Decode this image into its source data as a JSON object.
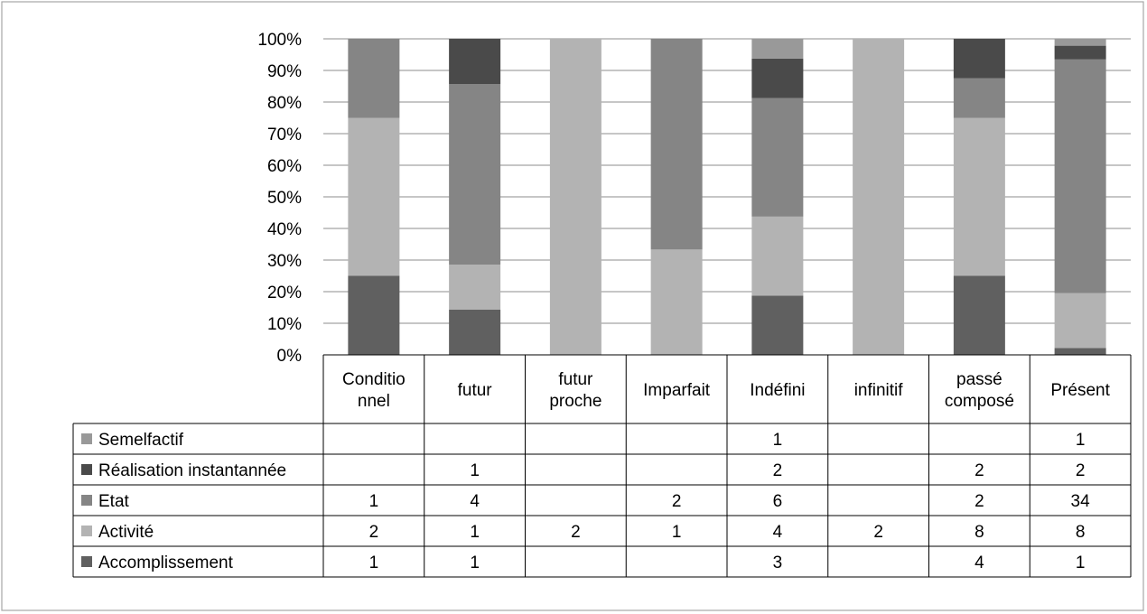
{
  "chart_data": {
    "type": "bar",
    "stacked": "percent",
    "categories": [
      "Conditionnel",
      "futur",
      "futur proche",
      "Imparfait",
      "Indéfini",
      "infinitif",
      "passé composé",
      "Présent"
    ],
    "category_label_lines": [
      [
        "Conditio",
        "nnel"
      ],
      [
        "futur"
      ],
      [
        "futur",
        "proche"
      ],
      [
        "Imparfait"
      ],
      [
        "Indéfini"
      ],
      [
        "infinitif"
      ],
      [
        "passé",
        "composé"
      ],
      [
        "Présent"
      ]
    ],
    "yticks": [
      "0%",
      "10%",
      "20%",
      "30%",
      "40%",
      "50%",
      "60%",
      "70%",
      "80%",
      "90%",
      "100%"
    ],
    "ylim": [
      0,
      100
    ],
    "grid": true,
    "legend_position": "data-table",
    "series": [
      {
        "name": "Accomplissement",
        "color": "#606060",
        "values": [
          1,
          1,
          null,
          null,
          3,
          null,
          4,
          1
        ]
      },
      {
        "name": "Activité",
        "color": "#b3b3b3",
        "values": [
          2,
          1,
          2,
          1,
          4,
          2,
          8,
          8
        ]
      },
      {
        "name": "Etat",
        "color": "#858585",
        "values": [
          1,
          4,
          null,
          2,
          6,
          null,
          2,
          34
        ]
      },
      {
        "name": "Réalisation instantannée",
        "color": "#4a4a4a",
        "values": [
          null,
          1,
          null,
          null,
          2,
          null,
          2,
          2
        ]
      },
      {
        "name": "Semelfactif",
        "color": "#999999",
        "values": [
          null,
          null,
          null,
          null,
          1,
          null,
          null,
          1
        ]
      }
    ],
    "table_row_order": [
      "Semelfactif",
      "Réalisation instantannée",
      "Etat",
      "Activité",
      "Accomplissement"
    ]
  }
}
